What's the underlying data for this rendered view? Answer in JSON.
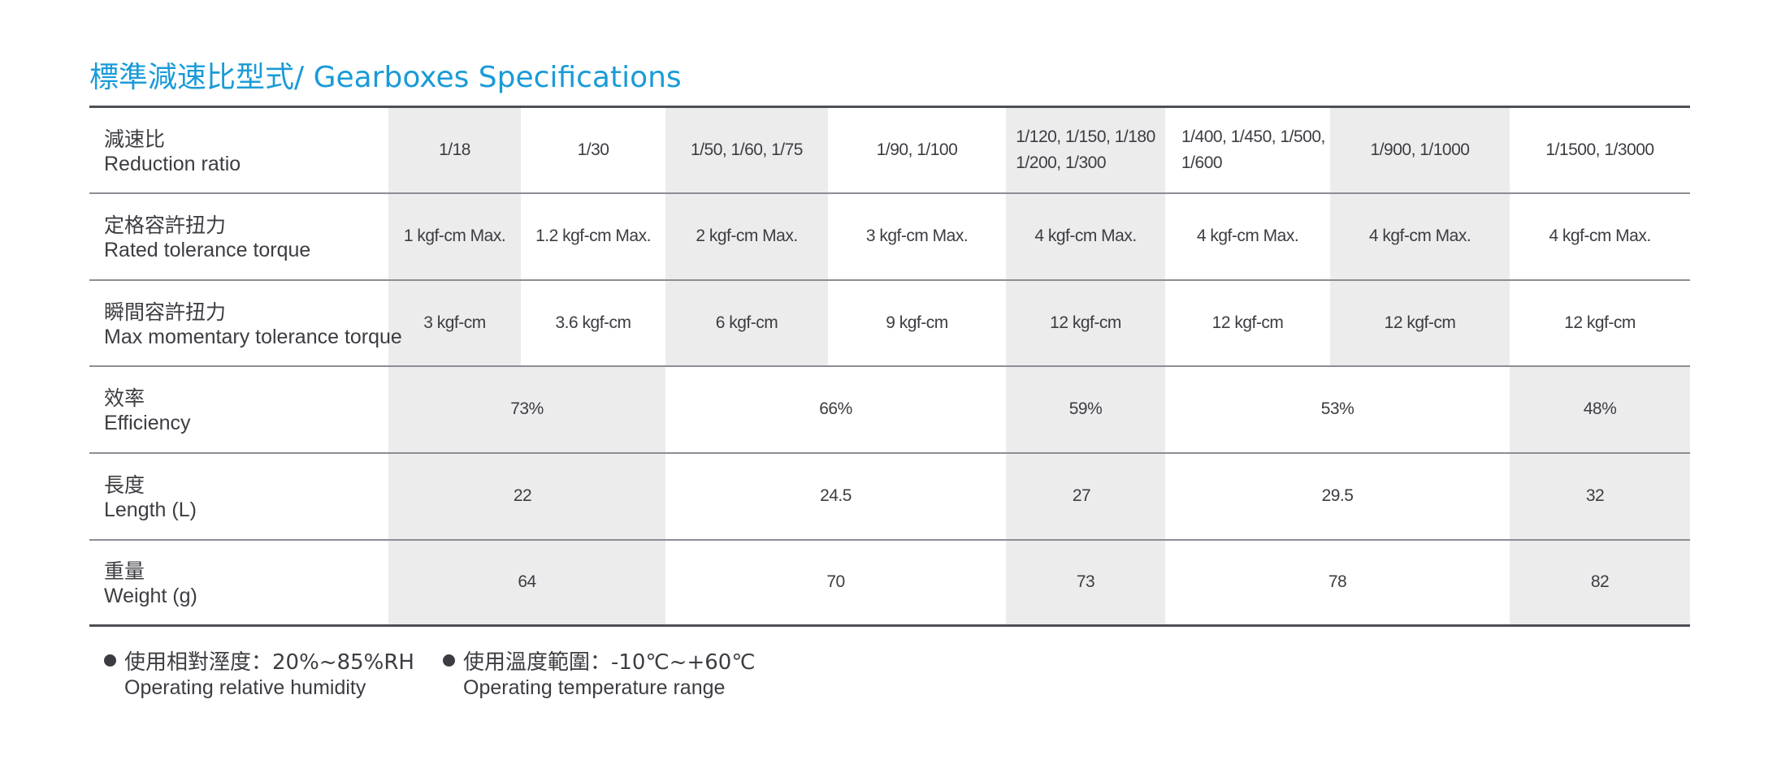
{
  "title": "標準減速比型式/ Gearboxes Specifications",
  "rows": [
    {
      "zh": "減速比",
      "en": "Reduction ratio",
      "cells": [
        "1/18",
        "1/30",
        "1/50, 1/60, 1/75",
        "1/90, 1/100",
        "1/120, 1/150, 1/180\n1/200, 1/300",
        "1/400, 1/450, 1/500,\n1/600",
        "1/900, 1/1000",
        "1/1500, 1/3000"
      ]
    },
    {
      "zh": "定格容許扭力",
      "en": "Rated tolerance torque",
      "cells": [
        "1 kgf-cm Max.",
        "1.2 kgf-cm Max.",
        "2 kgf-cm Max.",
        "3 kgf-cm Max.",
        "4  kgf-cm Max.",
        "4 kgf-cm Max.",
        "4 kgf-cm Max.",
        "4 kgf-cm Max."
      ]
    },
    {
      "zh": "瞬間容許扭力",
      "en": "Max momentary tolerance torque",
      "cells": [
        "3 kgf-cm",
        "3.6 kgf-cm",
        "6 kgf-cm",
        "9 kgf-cm",
        "12 kgf-cm",
        "12 kgf-cm",
        "12 kgf-cm",
        "12 kgf-cm"
      ]
    },
    {
      "zh": "效率",
      "en": "Efficiency",
      "cells": [
        "73%",
        "66%",
        "59%",
        "53%",
        "48%"
      ]
    },
    {
      "zh": "長度",
      "en": "Length (L)",
      "cells": [
        "22",
        "24.5",
        "27",
        "29.5",
        "32"
      ]
    },
    {
      "zh": "重量",
      "en": "Weight (g)",
      "cells": [
        "64",
        "70",
        "73",
        "78",
        "82"
      ]
    }
  ],
  "notes": [
    {
      "zh": "使用相對溼度：20%~85%RH",
      "en": "Operating relative humidity"
    },
    {
      "zh": "使用溫度範圍：-10℃~+60℃",
      "en": "Operating temperature range"
    }
  ]
}
